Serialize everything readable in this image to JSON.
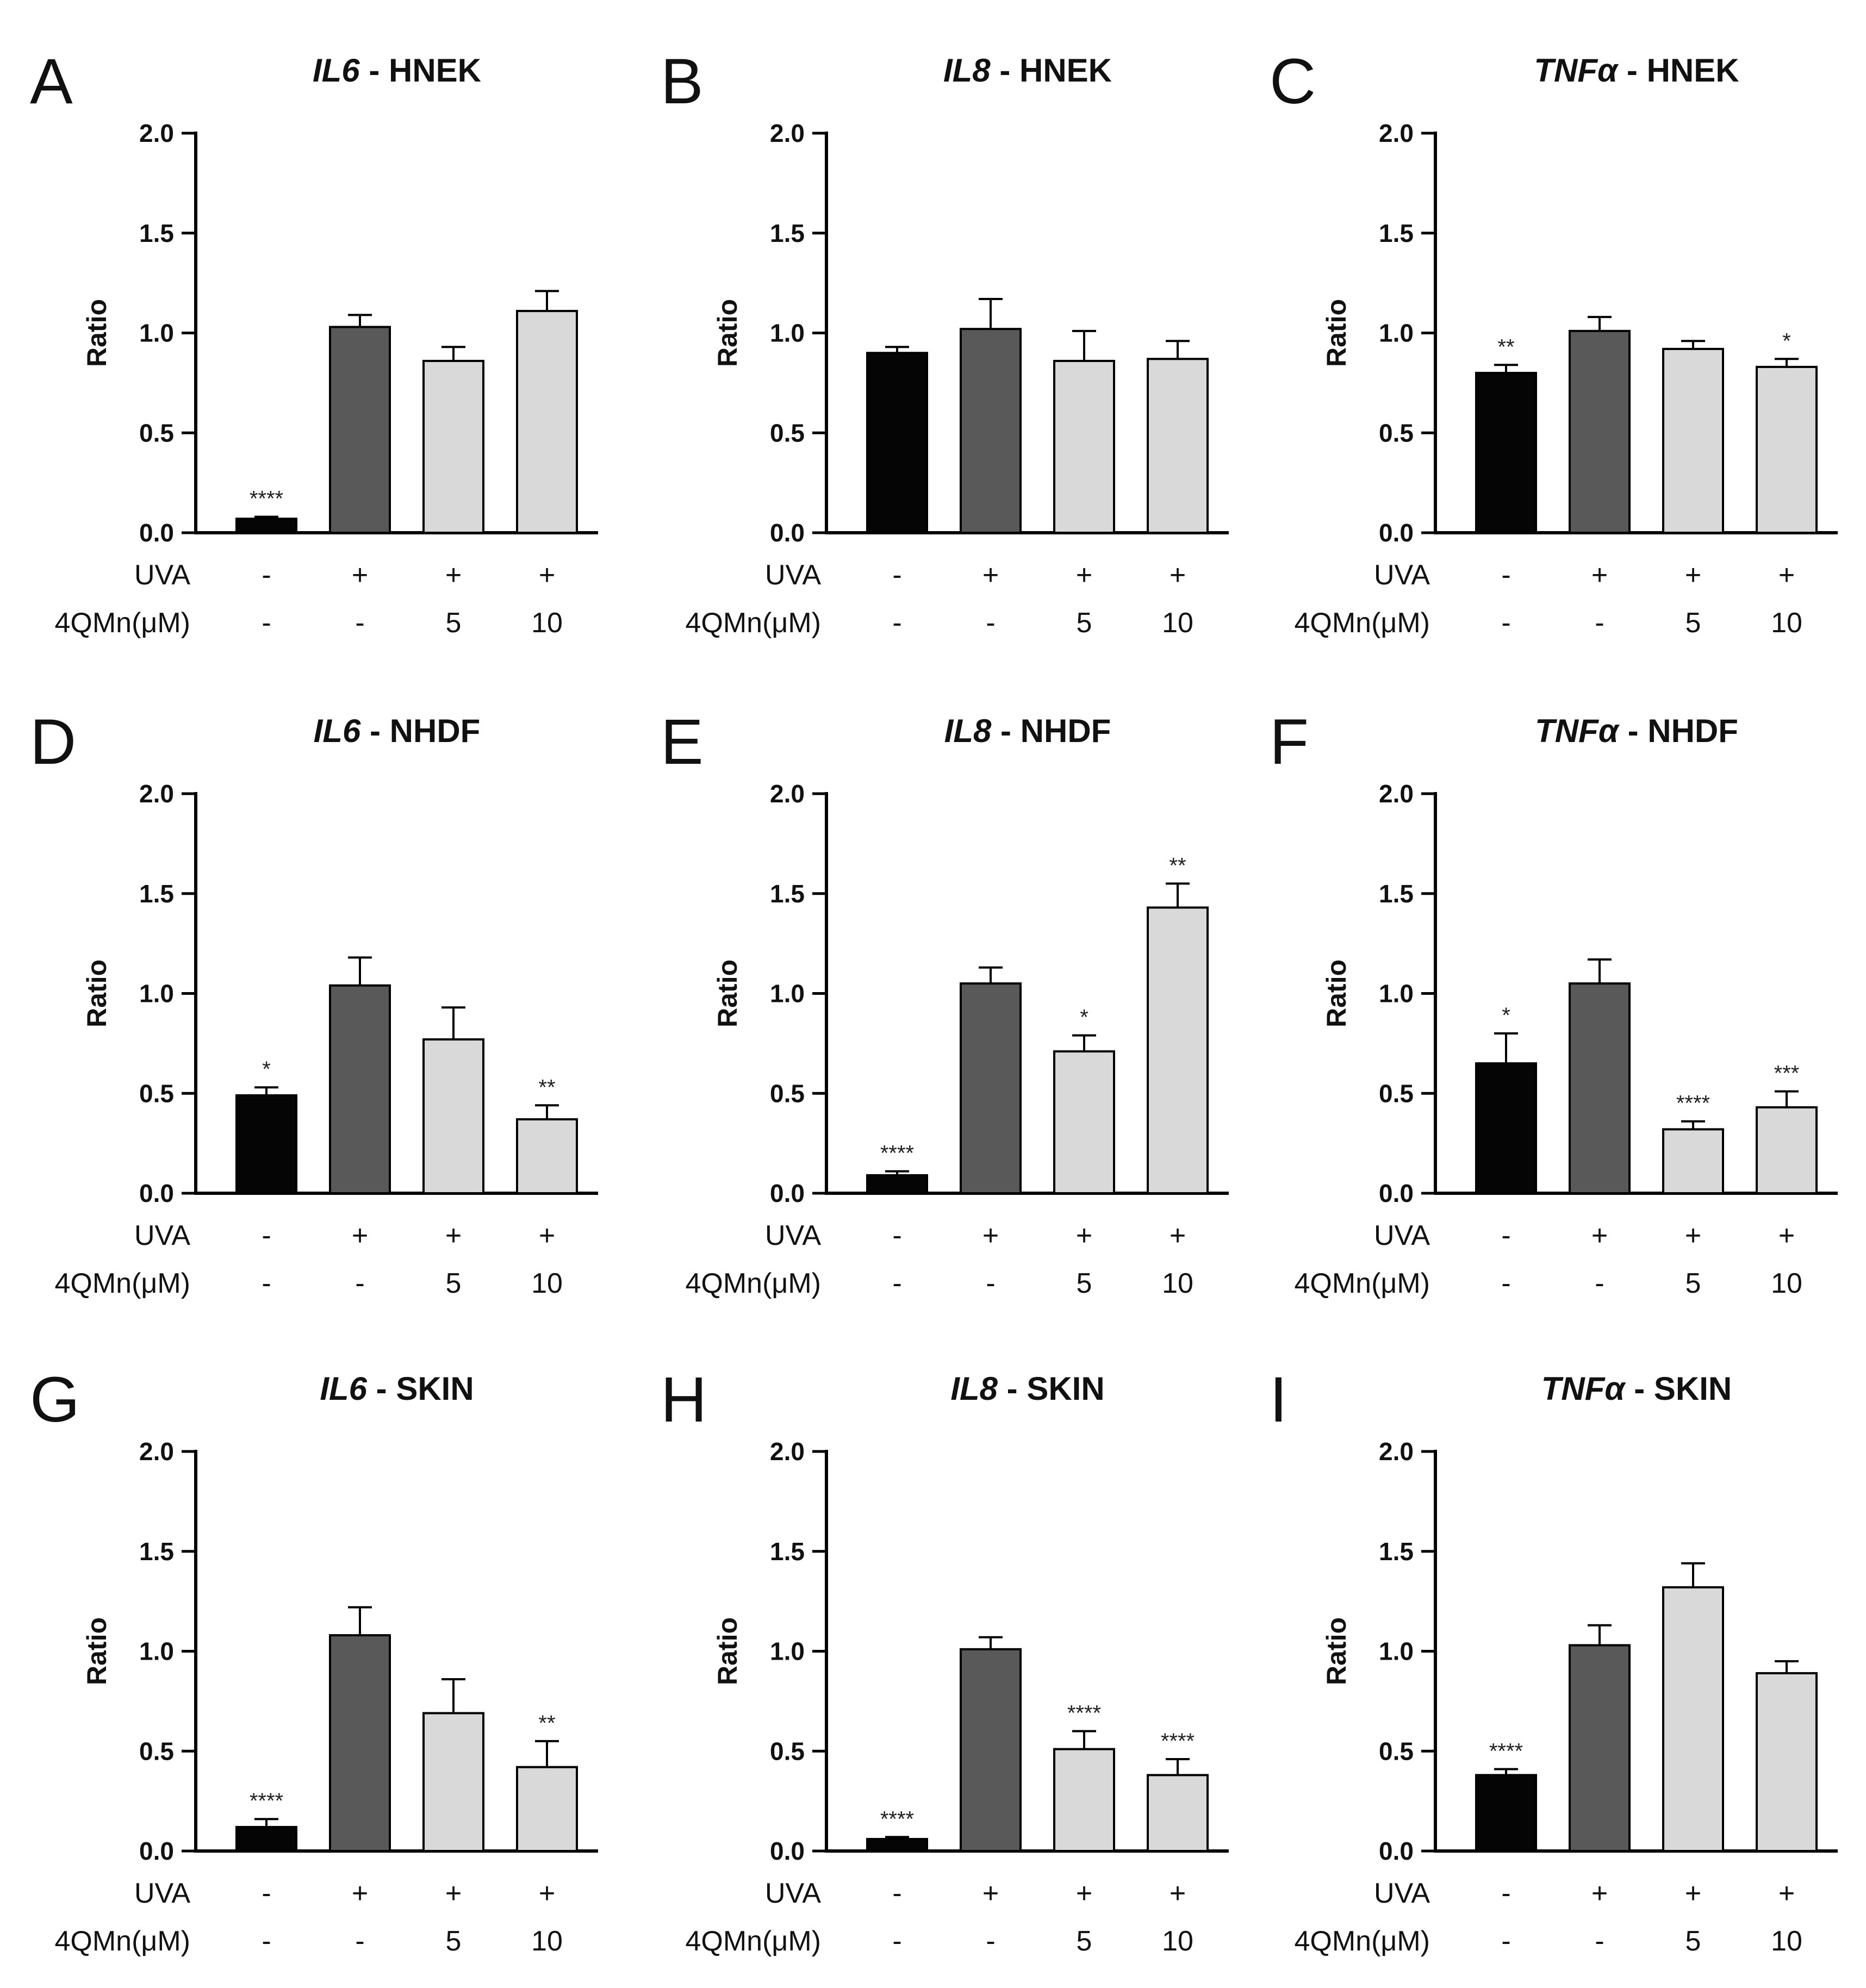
{
  "chart_data": [
    {
      "type": "bar",
      "panel": "A",
      "title_gene": "IL6",
      "title_rest": " - HNEK",
      "ylabel": "Ratio",
      "ylim": [
        0,
        2.0
      ],
      "yticks": [
        "0.0",
        "0.5",
        "1.0",
        "1.5",
        "2.0"
      ],
      "categories": [
        "-/-",
        "+/-",
        "+/5",
        "+/10"
      ],
      "values": [
        0.07,
        1.03,
        0.86,
        1.11
      ],
      "errors": [
        0.01,
        0.06,
        0.07,
        0.1
      ],
      "significance": [
        "****",
        "",
        "",
        ""
      ],
      "bar_colors": [
        "#050505",
        "#595959",
        "#d9d9d9",
        "#d9d9d9"
      ],
      "condition_rows": [
        {
          "label": "UVA",
          "values": [
            "-",
            "+",
            "+",
            "+"
          ]
        },
        {
          "label": "4QMn(μM)",
          "values": [
            "-",
            "-",
            "5",
            "10"
          ]
        }
      ]
    },
    {
      "type": "bar",
      "panel": "B",
      "title_gene": "IL8",
      "title_rest": " - HNEK",
      "ylabel": "Ratio",
      "ylim": [
        0,
        2.0
      ],
      "yticks": [
        "0.0",
        "0.5",
        "1.0",
        "1.5",
        "2.0"
      ],
      "categories": [
        "-/-",
        "+/-",
        "+/5",
        "+/10"
      ],
      "values": [
        0.9,
        1.02,
        0.86,
        0.87
      ],
      "errors": [
        0.03,
        0.15,
        0.15,
        0.09
      ],
      "significance": [
        "",
        "",
        "",
        ""
      ],
      "bar_colors": [
        "#050505",
        "#595959",
        "#d9d9d9",
        "#d9d9d9"
      ],
      "condition_rows": [
        {
          "label": "UVA",
          "values": [
            "-",
            "+",
            "+",
            "+"
          ]
        },
        {
          "label": "4QMn(μM)",
          "values": [
            "-",
            "-",
            "5",
            "10"
          ]
        }
      ]
    },
    {
      "type": "bar",
      "panel": "C",
      "title_gene": "TNFα",
      "title_rest": " - HNEK",
      "ylabel": "Ratio",
      "ylim": [
        0,
        2.0
      ],
      "yticks": [
        "0.0",
        "0.5",
        "1.0",
        "1.5",
        "2.0"
      ],
      "categories": [
        "-/-",
        "+/-",
        "+/5",
        "+/10"
      ],
      "values": [
        0.8,
        1.01,
        0.92,
        0.83
      ],
      "errors": [
        0.04,
        0.07,
        0.04,
        0.04
      ],
      "significance": [
        "**",
        "",
        "",
        "*"
      ],
      "bar_colors": [
        "#050505",
        "#595959",
        "#d9d9d9",
        "#d9d9d9"
      ],
      "condition_rows": [
        {
          "label": "UVA",
          "values": [
            "-",
            "+",
            "+",
            "+"
          ]
        },
        {
          "label": "4QMn(μM)",
          "values": [
            "-",
            "-",
            "5",
            "10"
          ]
        }
      ]
    },
    {
      "type": "bar",
      "panel": "D",
      "title_gene": "IL6",
      "title_rest": " - NHDF",
      "ylabel": "Ratio",
      "ylim": [
        0,
        2.0
      ],
      "yticks": [
        "0.0",
        "0.5",
        "1.0",
        "1.5",
        "2.0"
      ],
      "categories": [
        "-/-",
        "+/-",
        "+/5",
        "+/10"
      ],
      "values": [
        0.49,
        1.04,
        0.77,
        0.37
      ],
      "errors": [
        0.04,
        0.14,
        0.16,
        0.07
      ],
      "significance": [
        "*",
        "",
        "",
        "**"
      ],
      "bar_colors": [
        "#050505",
        "#595959",
        "#d9d9d9",
        "#d9d9d9"
      ],
      "condition_rows": [
        {
          "label": "UVA",
          "values": [
            "-",
            "+",
            "+",
            "+"
          ]
        },
        {
          "label": "4QMn(μM)",
          "values": [
            "-",
            "-",
            "5",
            "10"
          ]
        }
      ]
    },
    {
      "type": "bar",
      "panel": "E",
      "title_gene": "IL8",
      "title_rest": " - NHDF",
      "ylabel": "Ratio",
      "ylim": [
        0,
        2.0
      ],
      "yticks": [
        "0.0",
        "0.5",
        "1.0",
        "1.5",
        "2.0"
      ],
      "categories": [
        "-/-",
        "+/-",
        "+/5",
        "+/10"
      ],
      "values": [
        0.09,
        1.05,
        0.71,
        1.43
      ],
      "errors": [
        0.02,
        0.08,
        0.08,
        0.12
      ],
      "significance": [
        "****",
        "",
        "*",
        "**"
      ],
      "bar_colors": [
        "#050505",
        "#595959",
        "#d9d9d9",
        "#d9d9d9"
      ],
      "condition_rows": [
        {
          "label": "UVA",
          "values": [
            "-",
            "+",
            "+",
            "+"
          ]
        },
        {
          "label": "4QMn(μM)",
          "values": [
            "-",
            "-",
            "5",
            "10"
          ]
        }
      ]
    },
    {
      "type": "bar",
      "panel": "F",
      "title_gene": "TNFα",
      "title_rest": " - NHDF",
      "ylabel": "Ratio",
      "ylim": [
        0,
        2.0
      ],
      "yticks": [
        "0.0",
        "0.5",
        "1.0",
        "1.5",
        "2.0"
      ],
      "categories": [
        "-/-",
        "+/-",
        "+/5",
        "+/10"
      ],
      "values": [
        0.65,
        1.05,
        0.32,
        0.43
      ],
      "errors": [
        0.15,
        0.12,
        0.04,
        0.08
      ],
      "significance": [
        "*",
        "",
        "****",
        "***"
      ],
      "bar_colors": [
        "#050505",
        "#595959",
        "#d9d9d9",
        "#d9d9d9"
      ],
      "condition_rows": [
        {
          "label": "UVA",
          "values": [
            "-",
            "+",
            "+",
            "+"
          ]
        },
        {
          "label": "4QMn(μM)",
          "values": [
            "-",
            "-",
            "5",
            "10"
          ]
        }
      ]
    },
    {
      "type": "bar",
      "panel": "G",
      "title_gene": "IL6",
      "title_rest": " - SKIN",
      "ylabel": "Ratio",
      "ylim": [
        0,
        2.0
      ],
      "yticks": [
        "0.0",
        "0.5",
        "1.0",
        "1.5",
        "2.0"
      ],
      "categories": [
        "-/-",
        "+/-",
        "+/5",
        "+/10"
      ],
      "values": [
        0.12,
        1.08,
        0.69,
        0.42
      ],
      "errors": [
        0.04,
        0.14,
        0.17,
        0.13
      ],
      "significance": [
        "****",
        "",
        "",
        "**"
      ],
      "bar_colors": [
        "#050505",
        "#595959",
        "#d9d9d9",
        "#d9d9d9"
      ],
      "condition_rows": [
        {
          "label": "UVA",
          "values": [
            "-",
            "+",
            "+",
            "+"
          ]
        },
        {
          "label": "4QMn(μM)",
          "values": [
            "-",
            "-",
            "5",
            "10"
          ]
        }
      ]
    },
    {
      "type": "bar",
      "panel": "H",
      "title_gene": "IL8",
      "title_rest": " - SKIN",
      "ylabel": "Ratio",
      "ylim": [
        0,
        2.0
      ],
      "yticks": [
        "0.0",
        "0.5",
        "1.0",
        "1.5",
        "2.0"
      ],
      "categories": [
        "-/-",
        "+/-",
        "+/5",
        "+/10"
      ],
      "values": [
        0.06,
        1.01,
        0.51,
        0.38
      ],
      "errors": [
        0.01,
        0.06,
        0.09,
        0.08
      ],
      "significance": [
        "****",
        "",
        "****",
        "****"
      ],
      "bar_colors": [
        "#050505",
        "#595959",
        "#d9d9d9",
        "#d9d9d9"
      ],
      "condition_rows": [
        {
          "label": "UVA",
          "values": [
            "-",
            "+",
            "+",
            "+"
          ]
        },
        {
          "label": "4QMn(μM)",
          "values": [
            "-",
            "-",
            "5",
            "10"
          ]
        }
      ]
    },
    {
      "type": "bar",
      "panel": "I",
      "title_gene": "TNFα",
      "title_rest": " - SKIN",
      "ylabel": "Ratio",
      "ylim": [
        0,
        2.0
      ],
      "yticks": [
        "0.0",
        "0.5",
        "1.0",
        "1.5",
        "2.0"
      ],
      "categories": [
        "-/-",
        "+/-",
        "+/5",
        "+/10"
      ],
      "values": [
        0.38,
        1.03,
        1.32,
        0.89
      ],
      "errors": [
        0.03,
        0.1,
        0.12,
        0.06
      ],
      "significance": [
        "****",
        "",
        "",
        ""
      ],
      "bar_colors": [
        "#050505",
        "#595959",
        "#d9d9d9",
        "#d9d9d9"
      ],
      "condition_rows": [
        {
          "label": "UVA",
          "values": [
            "-",
            "+",
            "+",
            "+"
          ]
        },
        {
          "label": "4QMn(μM)",
          "values": [
            "-",
            "-",
            "5",
            "10"
          ]
        }
      ]
    }
  ]
}
